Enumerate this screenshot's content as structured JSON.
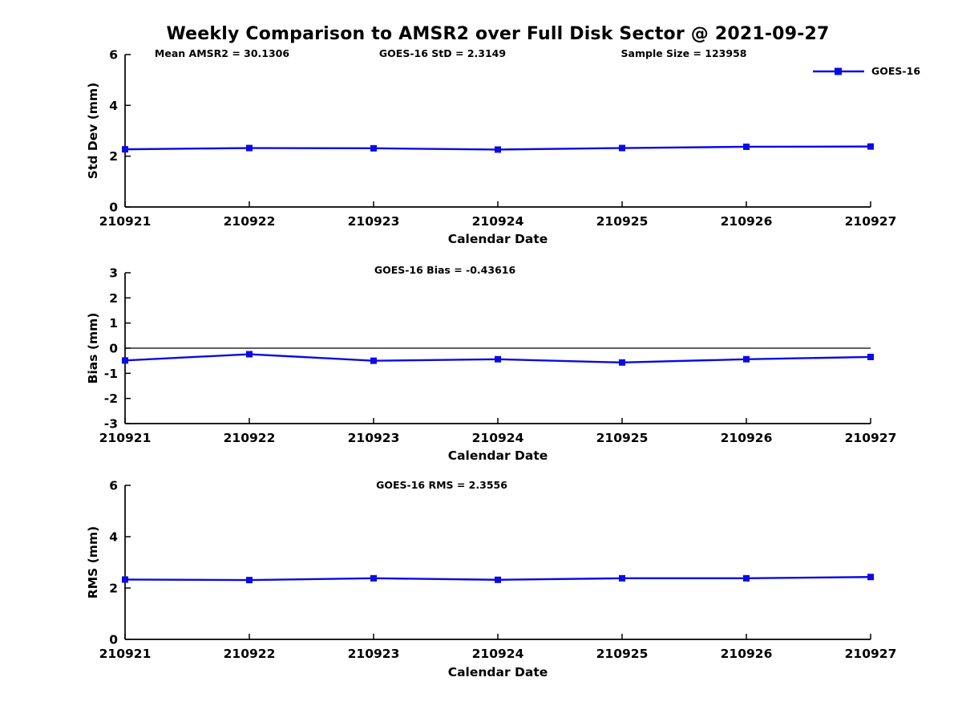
{
  "figure": {
    "title": "Weekly Comparison to AMSR2 over Full Disk Sector @ 2021-09-27",
    "legend": {
      "label": "GOES-16"
    },
    "colors": {
      "line": "#0a0ae6",
      "axis": "#000000",
      "zero_line": "#000000"
    }
  },
  "chart_data": [
    {
      "type": "line",
      "name": "std-dev",
      "annotations": [
        "Mean AMSR2 = 30.1306",
        "GOES-16 StD = 2.3149",
        "Sample Size = 123958"
      ],
      "categories": [
        "210921",
        "210922",
        "210923",
        "210924",
        "210925",
        "210926",
        "210927"
      ],
      "series": [
        {
          "name": "GOES-16",
          "values": [
            2.27,
            2.32,
            2.31,
            2.26,
            2.32,
            2.37,
            2.38
          ]
        }
      ],
      "xlabel": "Calendar Date",
      "ylabel": "Std Dev (mm)",
      "ylim": [
        0,
        6
      ],
      "yticks": [
        0,
        2,
        4,
        6
      ],
      "grid": false,
      "zero_line": false,
      "legend_position": "top-right"
    },
    {
      "type": "line",
      "name": "bias",
      "annotations": [
        "GOES-16 Bias  = -0.43616"
      ],
      "categories": [
        "210921",
        "210922",
        "210923",
        "210924",
        "210925",
        "210926",
        "210927"
      ],
      "series": [
        {
          "name": "GOES-16",
          "values": [
            -0.49,
            -0.24,
            -0.5,
            -0.44,
            -0.57,
            -0.44,
            -0.35
          ]
        }
      ],
      "xlabel": "Calendar Date",
      "ylabel": "Bias (mm)",
      "ylim": [
        -3,
        3
      ],
      "yticks": [
        3,
        2,
        1,
        0,
        -1,
        -2,
        -3
      ],
      "grid": false,
      "zero_line": true,
      "legend_position": "none"
    },
    {
      "type": "line",
      "name": "rms",
      "annotations": [
        "GOES-16 RMS = 2.3556"
      ],
      "categories": [
        "210921",
        "210922",
        "210923",
        "210924",
        "210925",
        "210926",
        "210927"
      ],
      "series": [
        {
          "name": "GOES-16",
          "values": [
            2.33,
            2.31,
            2.38,
            2.32,
            2.38,
            2.38,
            2.43
          ]
        }
      ],
      "xlabel": "Calendar Date",
      "ylabel": "RMS (mm)",
      "ylim": [
        0,
        6
      ],
      "yticks": [
        0,
        2,
        4,
        6
      ],
      "grid": false,
      "zero_line": false,
      "legend_position": "none"
    }
  ]
}
